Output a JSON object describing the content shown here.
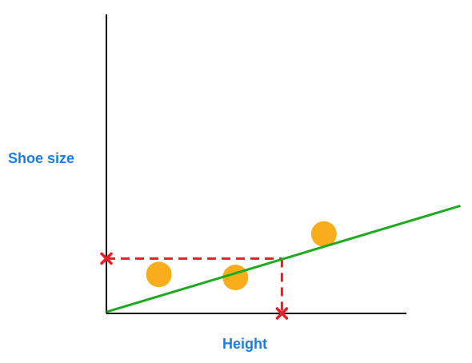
{
  "chart_data": {
    "type": "scatter",
    "title": "",
    "xlabel": "Height",
    "ylabel": "Shoe size",
    "xlim": [
      0,
      10
    ],
    "ylim": [
      0,
      10
    ],
    "grid": false,
    "legend": "none",
    "points": [
      {
        "x": 1.75,
        "y": 1.3
      },
      {
        "x": 4.3,
        "y": 1.2
      },
      {
        "x": 7.25,
        "y": 2.65
      }
    ],
    "fit_line": {
      "intercept": 0.05,
      "slope": 0.3,
      "x_start": 0,
      "x_end": 11.8
    },
    "projection": {
      "x": 5.85,
      "y": 1.83
    }
  },
  "colors": {
    "axis": "#000000",
    "point": "#f8ad1a",
    "fit_line": "#1eaa1e",
    "projection": "#ee1c24",
    "label": "#1c7cec"
  }
}
